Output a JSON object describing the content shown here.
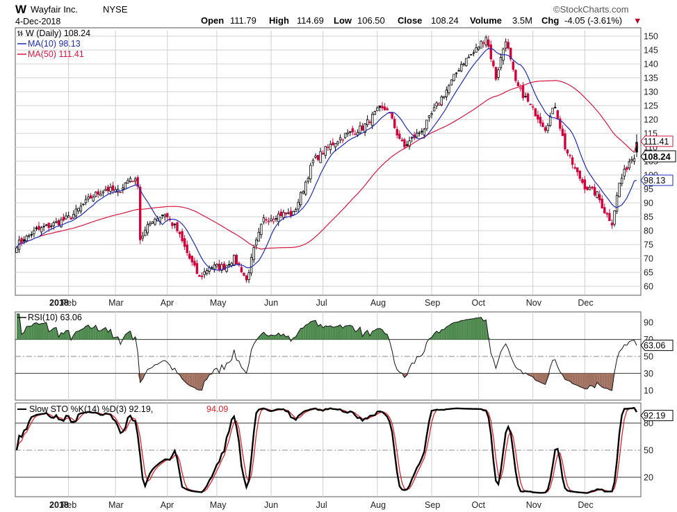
{
  "header": {
    "symbol": "W",
    "company": "Wayfair Inc.",
    "exchange": "NYSE",
    "date": "4-Dec-2018",
    "open_label": "Open",
    "open": "111.79",
    "high_label": "High",
    "high": "114.69",
    "low_label": "Low",
    "low": "106.50",
    "close_label": "Close",
    "close": "108.24",
    "volume_label": "Volume",
    "volume": "3.5M",
    "chg_label": "Chg",
    "chg": "-4.05 (-3.61%)",
    "chg_arrow": "▼",
    "watermark": "©StockCharts.com"
  },
  "legend": {
    "price": "W (Daily) 108.24",
    "ma10": "MA(10) 98.13",
    "ma50": "MA(50) 111.41"
  },
  "colors": {
    "up": "#000000",
    "down": "#d4003a",
    "ma10": "#1c2bb8",
    "ma50": "#d8163f",
    "rsi_hot": "#4f8a4f",
    "rsi_cold": "#a07060",
    "grid": "#cfcfcf"
  },
  "chart_data": [
    {
      "type": "candlestick",
      "title": "W (Daily)",
      "ylim": [
        57,
        152
      ],
      "y_ticks": [
        60,
        65,
        70,
        75,
        80,
        85,
        90,
        95,
        100,
        105,
        110,
        115,
        120,
        125,
        130,
        135,
        140,
        145,
        150
      ],
      "months": [
        "2018",
        "Feb",
        "Mar",
        "Apr",
        "May",
        "Jun",
        "Jul",
        "Aug",
        "Sep",
        "Oct",
        "Nov",
        "Dec"
      ],
      "close_anchors": [
        [
          0,
          75
        ],
        [
          8,
          80
        ],
        [
          14,
          82
        ],
        [
          22,
          85
        ],
        [
          30,
          92
        ],
        [
          36,
          95
        ],
        [
          41,
          94
        ],
        [
          46,
          99
        ],
        [
          49,
          97
        ],
        [
          50,
          77
        ],
        [
          55,
          84
        ],
        [
          60,
          86
        ],
        [
          65,
          80
        ],
        [
          70,
          70
        ],
        [
          74,
          63
        ],
        [
          78,
          67
        ],
        [
          84,
          67
        ],
        [
          88,
          70
        ],
        [
          91,
          66
        ],
        [
          93,
          62
        ],
        [
          96,
          73
        ],
        [
          100,
          84
        ],
        [
          107,
          86
        ],
        [
          112,
          86
        ],
        [
          116,
          95
        ],
        [
          120,
          105
        ],
        [
          126,
          110
        ],
        [
          132,
          114
        ],
        [
          140,
          117
        ],
        [
          146,
          123
        ],
        [
          150,
          124
        ],
        [
          154,
          115
        ],
        [
          157,
          110
        ],
        [
          160,
          113
        ],
        [
          165,
          117
        ],
        [
          170,
          125
        ],
        [
          175,
          132
        ],
        [
          180,
          140
        ],
        [
          185,
          144
        ],
        [
          190,
          150
        ],
        [
          194,
          135
        ],
        [
          198,
          149
        ],
        [
          202,
          133
        ],
        [
          208,
          125
        ],
        [
          214,
          117
        ],
        [
          218,
          125
        ],
        [
          222,
          110
        ],
        [
          226,
          102
        ],
        [
          230,
          96
        ],
        [
          235,
          93
        ],
        [
          238,
          87
        ],
        [
          241,
          83
        ],
        [
          244,
          97
        ],
        [
          248,
          105
        ],
        [
          251,
          108.24
        ]
      ],
      "ma10_last": 98.13,
      "ma50_last": 111.41,
      "last_price": 108.24
    },
    {
      "type": "line",
      "title": "RSI(10)",
      "value": 63.06,
      "ylim": [
        0,
        100
      ],
      "y_ticks": [
        10,
        30,
        50,
        70,
        90
      ],
      "levels": [
        30,
        50,
        70
      ]
    },
    {
      "type": "line",
      "title": "Slow STO %K(14) %D(3)",
      "k_value": 92.19,
      "d_value": 94.09,
      "ylim": [
        0,
        100
      ],
      "y_ticks": [
        20,
        50,
        80
      ],
      "levels": [
        20,
        50,
        80
      ]
    }
  ],
  "labels": {
    "rsi_title": "RSI(10) 63.06",
    "sto_title": "Slow STO %K(14) %D(3) 92.19,",
    "sto_d": "94.09",
    "ma10_tag": "98.13",
    "ma50_tag": "111.41",
    "price_tag": "108.24",
    "rsi_tag": "63.06",
    "sto_tag": "92.19"
  }
}
